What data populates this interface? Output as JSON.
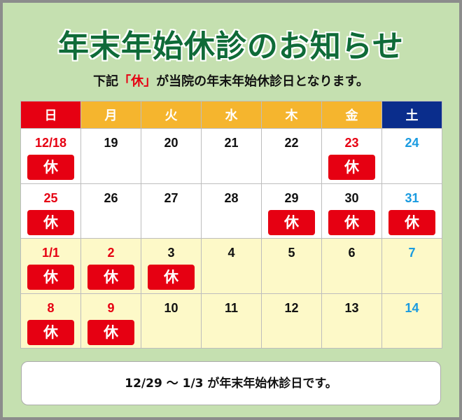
{
  "title": "年末年始休診のお知らせ",
  "subtitle": {
    "pre": "下記",
    "highlight": "「休」",
    "post": "が当院の年末年始休診日となります。"
  },
  "holiday_label": "休",
  "colors": {
    "sunday": "#e60012",
    "weekday": "#f5b52e",
    "saturday": "#0a2d8c",
    "red": "#e60012",
    "blue": "#1a9be0",
    "black": "#111111",
    "white_cell": "#ffffff",
    "yellow_cell": "#fdf9c8",
    "title": "#0f6b38"
  },
  "weekdays": [
    {
      "label": "日",
      "bg": "#e60012"
    },
    {
      "label": "月",
      "bg": "#f5b52e"
    },
    {
      "label": "火",
      "bg": "#f5b52e"
    },
    {
      "label": "水",
      "bg": "#f5b52e"
    },
    {
      "label": "木",
      "bg": "#f5b52e"
    },
    {
      "label": "金",
      "bg": "#f5b52e"
    },
    {
      "label": "土",
      "bg": "#0a2d8c"
    }
  ],
  "weeks": [
    {
      "bg": "#ffffff",
      "days": [
        {
          "d": "12/18",
          "c": "red",
          "h": true
        },
        {
          "d": "19",
          "c": "black",
          "h": false
        },
        {
          "d": "20",
          "c": "black",
          "h": false
        },
        {
          "d": "21",
          "c": "black",
          "h": false
        },
        {
          "d": "22",
          "c": "black",
          "h": false
        },
        {
          "d": "23",
          "c": "red",
          "h": true
        },
        {
          "d": "24",
          "c": "blue",
          "h": false
        }
      ]
    },
    {
      "bg": "#ffffff",
      "days": [
        {
          "d": "25",
          "c": "red",
          "h": true
        },
        {
          "d": "26",
          "c": "black",
          "h": false
        },
        {
          "d": "27",
          "c": "black",
          "h": false
        },
        {
          "d": "28",
          "c": "black",
          "h": false
        },
        {
          "d": "29",
          "c": "black",
          "h": true
        },
        {
          "d": "30",
          "c": "black",
          "h": true
        },
        {
          "d": "31",
          "c": "blue",
          "h": true
        }
      ]
    },
    {
      "bg": "#fdf9c8",
      "days": [
        {
          "d": "1/1",
          "c": "red",
          "h": true
        },
        {
          "d": "2",
          "c": "red",
          "h": true
        },
        {
          "d": "3",
          "c": "black",
          "h": true
        },
        {
          "d": "4",
          "c": "black",
          "h": false
        },
        {
          "d": "5",
          "c": "black",
          "h": false
        },
        {
          "d": "6",
          "c": "black",
          "h": false
        },
        {
          "d": "7",
          "c": "blue",
          "h": false
        }
      ]
    },
    {
      "bg": "#fdf9c8",
      "days": [
        {
          "d": "8",
          "c": "red",
          "h": true
        },
        {
          "d": "9",
          "c": "red",
          "h": true
        },
        {
          "d": "10",
          "c": "black",
          "h": false
        },
        {
          "d": "11",
          "c": "black",
          "h": false
        },
        {
          "d": "12",
          "c": "black",
          "h": false
        },
        {
          "d": "13",
          "c": "black",
          "h": false
        },
        {
          "d": "14",
          "c": "blue",
          "h": false
        }
      ]
    }
  ],
  "footer": "12/29 ～ 1/3 が年末年始休診日です。"
}
